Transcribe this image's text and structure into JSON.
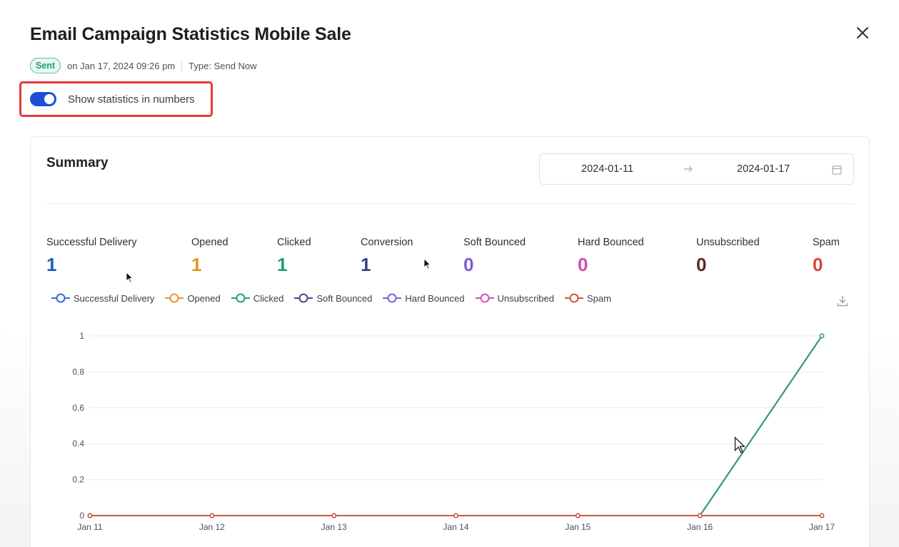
{
  "modal": {
    "title": "Email Campaign Statistics Mobile Sale",
    "status_badge": "Sent",
    "sent_at": "on Jan 17, 2024 09:26 pm",
    "type_text": "Type: Send Now",
    "toggle_label": "Show statistics in numbers",
    "toggle_on": true
  },
  "summary": {
    "title": "Summary",
    "date_start": "2024-01-11",
    "date_end": "2024-01-17",
    "stats": [
      {
        "label": "Successful Delivery",
        "value": "1",
        "color": "#1d5bbf"
      },
      {
        "label": "Opened",
        "value": "1",
        "color": "#e8931a"
      },
      {
        "label": "Clicked",
        "value": "1",
        "color": "#1f9e73"
      },
      {
        "label": "Conversion",
        "value": "1",
        "color": "#3b3f8f"
      },
      {
        "label": "Soft Bounced",
        "value": "0",
        "color": "#7b5cd6"
      },
      {
        "label": "Hard Bounced",
        "value": "0",
        "color": "#d04bb6"
      },
      {
        "label": "Unsubscribed",
        "value": "0",
        "color": "#5b2b22"
      },
      {
        "label": "Spam",
        "value": "0",
        "color": "#d24a33"
      }
    ]
  },
  "legend": [
    {
      "name": "Successful Delivery",
      "color": "#2e6fd1"
    },
    {
      "name": "Opened",
      "color": "#e39a2b"
    },
    {
      "name": "Clicked",
      "color": "#25a07a"
    },
    {
      "name": "Soft Bounced",
      "color": "#4a4a8c"
    },
    {
      "name": "Hard Bounced",
      "color": "#7c62d8"
    },
    {
      "name": "Unsubscribed",
      "color": "#cc55b2"
    },
    {
      "name": "Spam",
      "color": "#d0563f"
    }
  ],
  "chart_data": {
    "type": "line",
    "x": [
      "Jan 11",
      "Jan 12",
      "Jan 13",
      "Jan 14",
      "Jan 15",
      "Jan 16",
      "Jan 17"
    ],
    "yticks": [
      "0",
      "0.2",
      "0.4",
      "0.6",
      "0.8",
      "1"
    ],
    "ylim": [
      0,
      1
    ],
    "grid": true,
    "legend_position": "top-left",
    "series": [
      {
        "name": "Successful Delivery",
        "color": "#2e6fd1",
        "values": [
          0,
          0,
          0,
          0,
          0,
          0,
          1
        ]
      },
      {
        "name": "Opened",
        "color": "#e39a2b",
        "values": [
          0,
          0,
          0,
          0,
          0,
          0,
          1
        ]
      },
      {
        "name": "Clicked",
        "color": "#25a07a",
        "values": [
          0,
          0,
          0,
          0,
          0,
          0,
          1
        ]
      },
      {
        "name": "Soft Bounced",
        "color": "#4a4a8c",
        "values": [
          0,
          0,
          0,
          0,
          0,
          0,
          0
        ]
      },
      {
        "name": "Hard Bounced",
        "color": "#7c62d8",
        "values": [
          0,
          0,
          0,
          0,
          0,
          0,
          0
        ]
      },
      {
        "name": "Unsubscribed",
        "color": "#cc55b2",
        "values": [
          0,
          0,
          0,
          0,
          0,
          0,
          0
        ]
      },
      {
        "name": "Spam",
        "color": "#d0563f",
        "values": [
          0,
          0,
          0,
          0,
          0,
          0,
          0
        ]
      }
    ]
  }
}
